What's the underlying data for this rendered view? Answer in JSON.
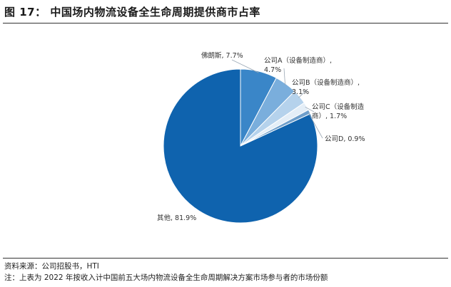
{
  "title": "图 17： 中国场内物流设备全生命周期提供商市占率",
  "source": "资料来源：公司招股书，HTI",
  "note": "注：上表为 2022 年按收入计中国前五大场内物流设备全生命周期解决方案市场参与者的市场份额",
  "chart_data": {
    "type": "pie",
    "slices": [
      {
        "name": "佛朗斯",
        "value": 7.7,
        "color": "#3A86C8",
        "label_lines": [
          "佛朗斯, 7.7%"
        ]
      },
      {
        "name": "公司A（设备制造商）",
        "value": 4.7,
        "color": "#7AAEDC",
        "label_lines": [
          "公司A（设备制造商）,",
          "4.7%"
        ]
      },
      {
        "name": "公司B（设备制造商）",
        "value": 3.1,
        "color": "#B5D2EC",
        "label_lines": [
          "公司B（设备制造商）,",
          "3.1%"
        ]
      },
      {
        "name": "公司C（设备制造商）",
        "value": 1.7,
        "color": "#E4EEF7",
        "label_lines": [
          "公司C（设备制造",
          "商）, 1.7%"
        ]
      },
      {
        "name": "公司D",
        "value": 0.9,
        "color": "#6F9FCB",
        "label_lines": [
          "公司D, 0.9%"
        ]
      },
      {
        "name": "其他",
        "value": 81.9,
        "color": "#0F63AE",
        "label_lines": [
          "其他, 81.9%"
        ]
      }
    ]
  }
}
